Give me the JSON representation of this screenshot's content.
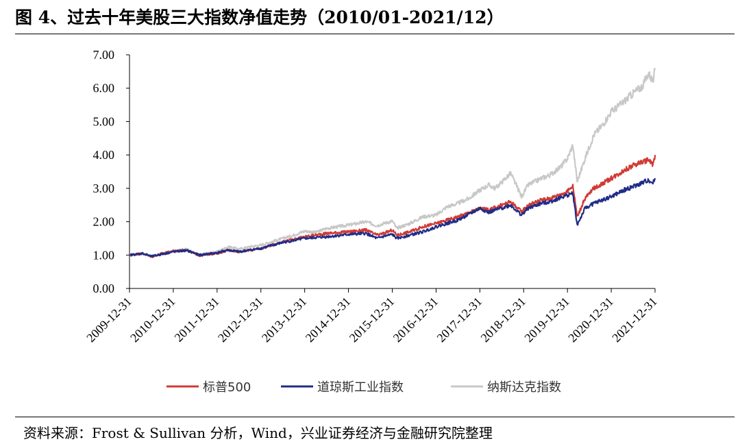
{
  "title": "图 4、过去十年美股三大指数净值走势（2010/01-2021/12）",
  "source": "资料来源：Frost & Sullivan 分析，Wind，兴业证券经济与金融研究院整理",
  "chart_data": {
    "type": "line",
    "title": "过去十年美股三大指数净值走势",
    "xlabel": "",
    "ylabel": "",
    "ylim": [
      0,
      7
    ],
    "y_ticks": [
      "0.00",
      "1.00",
      "2.00",
      "3.00",
      "4.00",
      "5.00",
      "6.00",
      "7.00"
    ],
    "x_ticks": [
      "2009-12-31",
      "2010-12-31",
      "2011-12-31",
      "2012-12-31",
      "2013-12-31",
      "2014-12-31",
      "2015-12-31",
      "2016-12-31",
      "2017-12-31",
      "2018-12-31",
      "2019-12-31",
      "2020-12-31",
      "2021-12-31"
    ],
    "x_range": [
      2009.9973,
      2021.9973
    ],
    "legend_position": "bottom",
    "series": [
      {
        "name": "纳斯达克指数",
        "color": "#c8c8c8",
        "x": [
          2010.0,
          2010.3,
          2010.5,
          2010.75,
          2011.0,
          2011.3,
          2011.6,
          2011.75,
          2012.0,
          2012.25,
          2012.5,
          2012.75,
          2013.0,
          2013.25,
          2013.5,
          2013.75,
          2014.0,
          2014.25,
          2014.5,
          2014.75,
          2015.0,
          2015.4,
          2015.65,
          2015.8,
          2016.0,
          2016.1,
          2016.4,
          2016.7,
          2017.0,
          2017.25,
          2017.5,
          2017.75,
          2018.0,
          2018.2,
          2018.35,
          2018.7,
          2018.95,
          2019.1,
          2019.4,
          2019.6,
          2019.85,
          2020.0,
          2020.12,
          2020.22,
          2020.4,
          2020.6,
          2020.8,
          2021.0,
          2021.2,
          2021.5,
          2021.7,
          2021.85,
          2021.95,
          2022.0
        ],
        "values": [
          1.0,
          1.05,
          0.95,
          1.05,
          1.12,
          1.18,
          1.0,
          1.05,
          1.1,
          1.25,
          1.18,
          1.25,
          1.3,
          1.4,
          1.5,
          1.6,
          1.72,
          1.68,
          1.8,
          1.85,
          1.9,
          2.0,
          1.88,
          1.95,
          2.02,
          1.8,
          1.95,
          2.15,
          2.2,
          2.45,
          2.55,
          2.7,
          2.95,
          3.1,
          3.0,
          3.45,
          2.75,
          3.1,
          3.3,
          3.4,
          3.65,
          3.9,
          4.3,
          3.2,
          3.9,
          4.6,
          4.9,
          5.3,
          5.5,
          5.85,
          6.05,
          6.45,
          6.2,
          6.55
        ]
      },
      {
        "name": "标普500",
        "color": "#d03a35",
        "x": [
          2010.0,
          2010.3,
          2010.5,
          2010.75,
          2011.0,
          2011.3,
          2011.6,
          2011.75,
          2012.0,
          2012.25,
          2012.5,
          2012.75,
          2013.0,
          2013.5,
          2014.0,
          2014.5,
          2015.0,
          2015.4,
          2015.65,
          2015.8,
          2016.0,
          2016.1,
          2016.4,
          2016.7,
          2017.0,
          2017.5,
          2018.0,
          2018.2,
          2018.7,
          2018.95,
          2019.1,
          2019.4,
          2019.6,
          2020.0,
          2020.12,
          2020.22,
          2020.4,
          2020.6,
          2021.0,
          2021.3,
          2021.6,
          2021.85,
          2021.95,
          2022.0
        ],
        "values": [
          1.0,
          1.05,
          0.95,
          1.05,
          1.12,
          1.15,
          0.98,
          1.02,
          1.05,
          1.15,
          1.1,
          1.15,
          1.2,
          1.4,
          1.55,
          1.65,
          1.7,
          1.75,
          1.6,
          1.65,
          1.75,
          1.6,
          1.7,
          1.85,
          1.95,
          2.15,
          2.4,
          2.35,
          2.6,
          2.3,
          2.5,
          2.65,
          2.7,
          2.9,
          3.1,
          2.15,
          2.7,
          3.0,
          3.3,
          3.55,
          3.75,
          3.85,
          3.7,
          4.0
        ]
      },
      {
        "name": "道琼斯工业指数",
        "color": "#1f2d87",
        "x": [
          2010.0,
          2010.3,
          2010.5,
          2010.75,
          2011.0,
          2011.3,
          2011.6,
          2011.75,
          2012.0,
          2012.25,
          2012.5,
          2012.75,
          2013.0,
          2013.5,
          2014.0,
          2014.5,
          2015.0,
          2015.4,
          2015.65,
          2015.8,
          2016.0,
          2016.1,
          2016.4,
          2016.7,
          2017.0,
          2017.5,
          2018.0,
          2018.2,
          2018.7,
          2018.95,
          2019.1,
          2019.4,
          2019.6,
          2020.0,
          2020.12,
          2020.22,
          2020.4,
          2020.6,
          2021.0,
          2021.3,
          2021.6,
          2021.85,
          2021.95,
          2022.0
        ],
        "values": [
          1.0,
          1.05,
          0.96,
          1.03,
          1.1,
          1.14,
          1.0,
          1.03,
          1.07,
          1.15,
          1.1,
          1.15,
          1.2,
          1.38,
          1.5,
          1.55,
          1.62,
          1.65,
          1.5,
          1.56,
          1.62,
          1.5,
          1.6,
          1.7,
          1.85,
          2.05,
          2.4,
          2.28,
          2.5,
          2.2,
          2.4,
          2.55,
          2.6,
          2.8,
          2.85,
          1.9,
          2.4,
          2.55,
          2.75,
          2.95,
          3.1,
          3.25,
          3.15,
          3.3
        ]
      }
    ],
    "legend": [
      "标普500",
      "道琼斯工业指数",
      "纳斯达克指数"
    ]
  }
}
